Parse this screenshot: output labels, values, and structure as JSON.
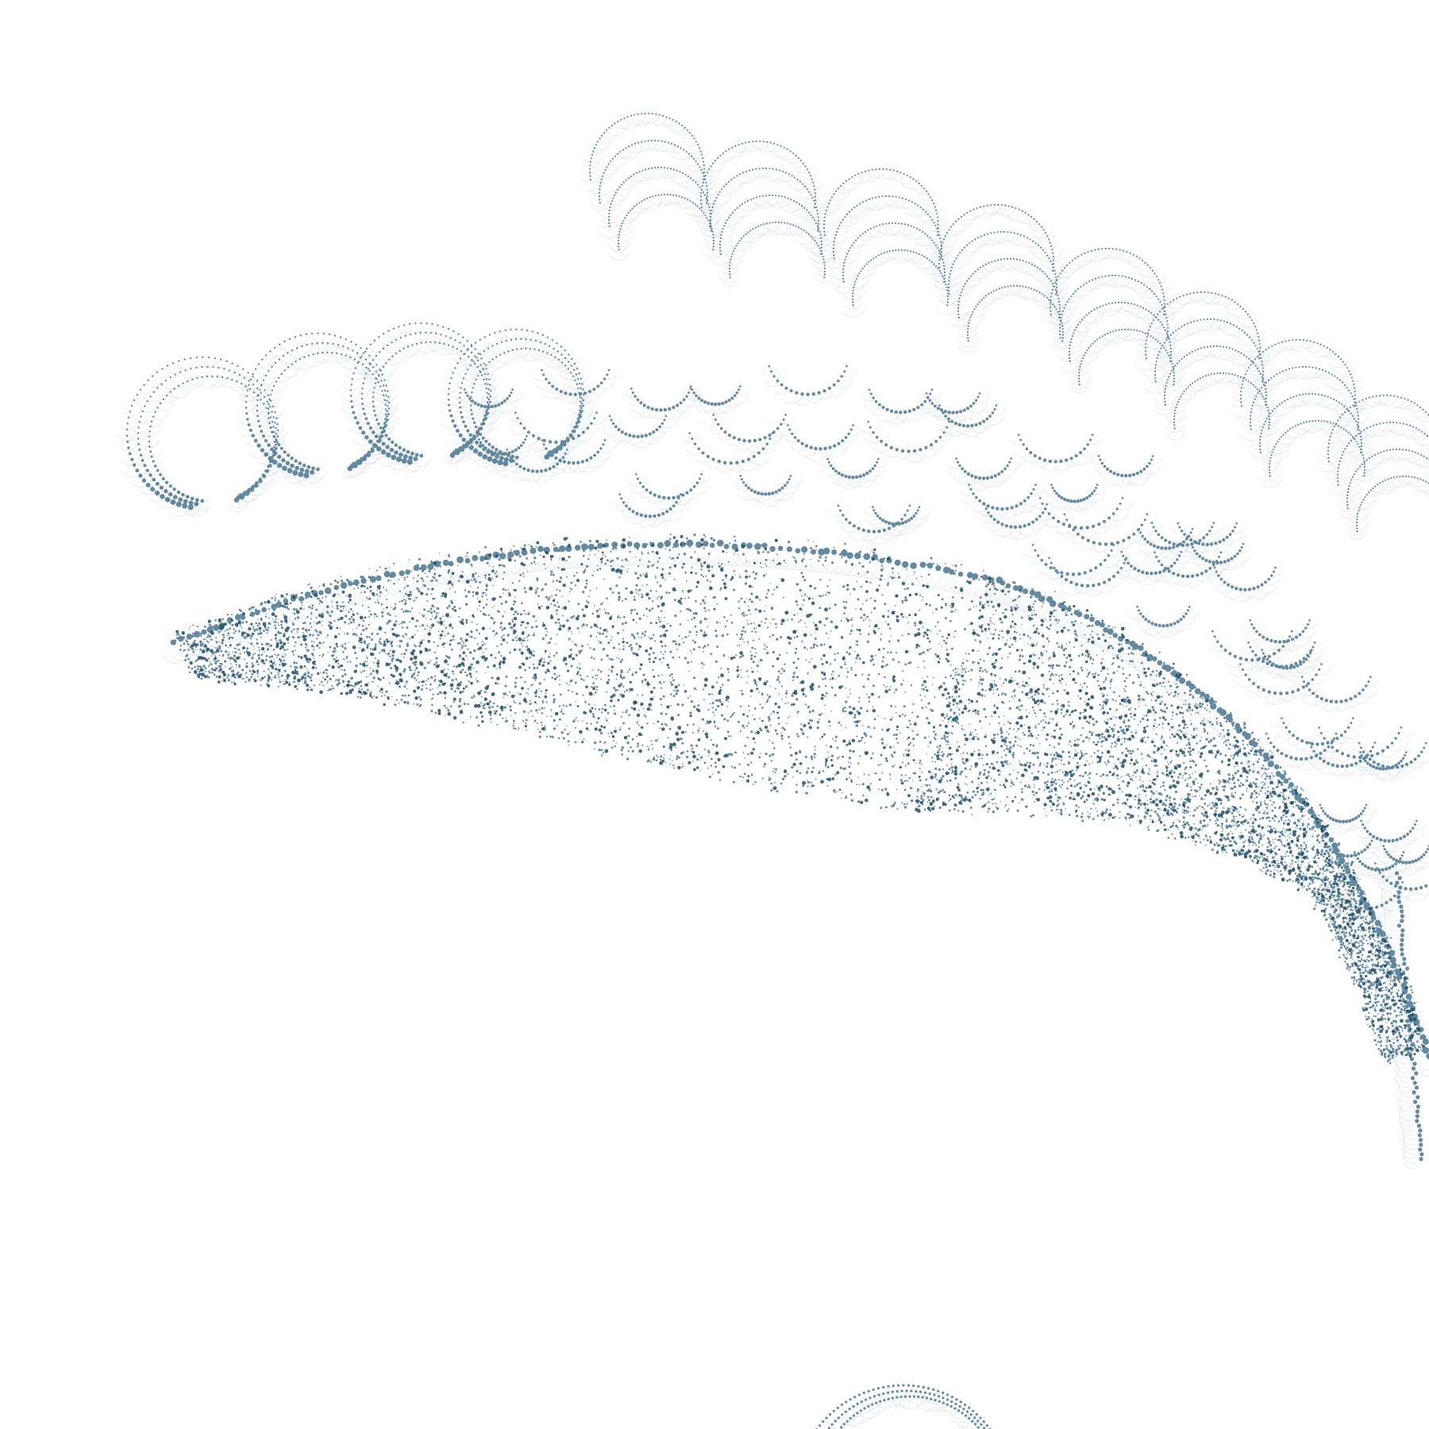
{
  "artwork": {
    "subject": "dotted-spiral-fractal",
    "background_color": "#ffffff",
    "dot_color": "#2f6381",
    "dot_color_dark": "#1f4e6a",
    "faint_ring_color": "#c7d6df"
  }
}
